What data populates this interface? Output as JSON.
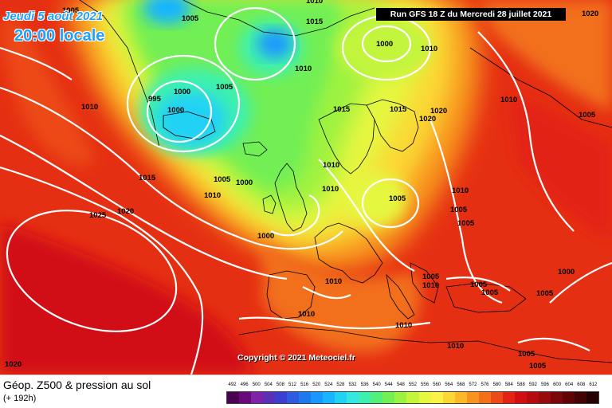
{
  "header": {
    "date_line": "Jeudi 5 août 2021",
    "time_line": "20:00 locale",
    "run_banner": "Run GFS 18 Z du Mercredi 28 juillet 2021"
  },
  "map": {
    "copyright": "Copyright © 2021 Meteociel.fr",
    "isobar_labels": [
      "1005",
      "1005",
      "1015",
      "1010",
      "1000",
      "1010",
      "995",
      "1000",
      "1005",
      "1000",
      "1010",
      "1015",
      "1015",
      "1020",
      "1020",
      "1010",
      "1005",
      "1000",
      "1015",
      "1010",
      "1025",
      "1020",
      "1010",
      "1005",
      "1010",
      "1000",
      "1010",
      "1005",
      "1010",
      "1005",
      "1005",
      "1005",
      "1005",
      "1000",
      "1010",
      "1010",
      "1010",
      "1005",
      "1005",
      "1020",
      "1010",
      "1020",
      "1005",
      "1010",
      "1005"
    ]
  },
  "legend": {
    "title": "Géop. Z500 & pression au sol",
    "lead_time": "(+ 192h)",
    "scale_values": [
      "492",
      "496",
      "500",
      "504",
      "508",
      "512",
      "516",
      "520",
      "524",
      "528",
      "532",
      "536",
      "540",
      "544",
      "548",
      "552",
      "556",
      "560",
      "564",
      "568",
      "572",
      "576",
      "580",
      "584",
      "588",
      "592",
      "596",
      "600",
      "604",
      "608",
      "612"
    ],
    "scale_colors": [
      "#4b0050",
      "#6a0a78",
      "#7e22a8",
      "#5b2fb8",
      "#3a3fd0",
      "#2f5be0",
      "#1e78f0",
      "#1a96ff",
      "#19b4ff",
      "#22d2f5",
      "#36e6e0",
      "#3ef0b0",
      "#52f07a",
      "#72ef55",
      "#9cf241",
      "#c3f53c",
      "#e6f73f",
      "#fbf14a",
      "#fbd734",
      "#fbb929",
      "#f7931f",
      "#f2701a",
      "#ec4a16",
      "#e32313",
      "#d10e12",
      "#b50a10",
      "#970a0e",
      "#7a0709",
      "#5e0407",
      "#420305",
      "#250102"
    ]
  }
}
